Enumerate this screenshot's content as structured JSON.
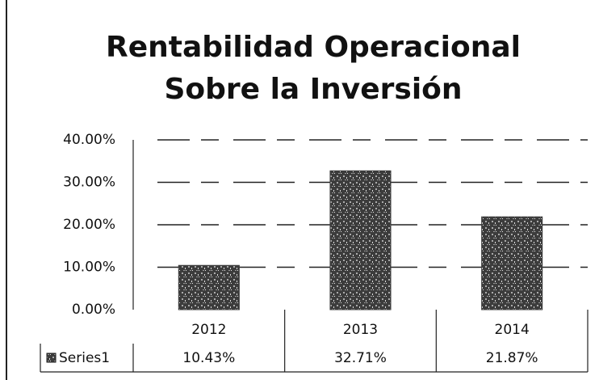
{
  "chart_data": {
    "type": "bar",
    "title": [
      "Rentabilidad Operacional",
      "Sobre la Inversión"
    ],
    "categories": [
      "2012",
      "2013",
      "2014"
    ],
    "series": [
      {
        "name": "Series1",
        "color": "#3c3c3c",
        "values": [
          10.43,
          32.71,
          21.87
        ],
        "value_labels": [
          "10.43%",
          "32.71%",
          "21.87%"
        ]
      }
    ],
    "ylim": [
      0,
      40
    ],
    "yticks": [
      {
        "value": 0,
        "label": "0.00%"
      },
      {
        "value": 10,
        "label": "10.00%"
      },
      {
        "value": 20,
        "label": "20.00%"
      },
      {
        "value": 30,
        "label": "30.00%"
      },
      {
        "value": 40,
        "label": "40.00%"
      }
    ],
    "grid": true
  }
}
